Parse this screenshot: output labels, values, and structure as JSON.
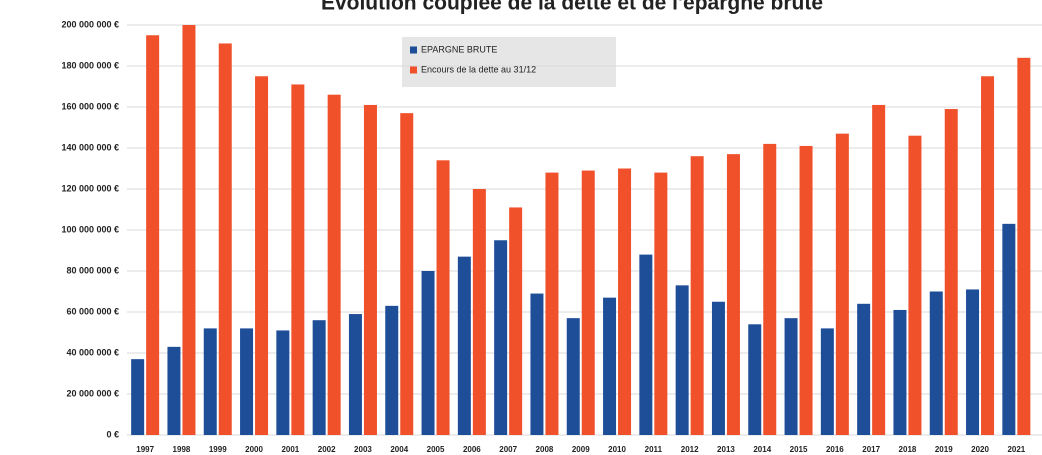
{
  "chart_data": {
    "type": "bar",
    "title": "Évolution couplée de la dette et de l'épargne brute",
    "categories": [
      "1997",
      "1998",
      "1999",
      "2000",
      "2001",
      "2002",
      "2003",
      "2004",
      "2005",
      "2006",
      "2007",
      "2008",
      "2009",
      "2010",
      "2011",
      "2012",
      "2013",
      "2014",
      "2015",
      "2016",
      "2017",
      "2018",
      "2019",
      "2020",
      "2021"
    ],
    "series": [
      {
        "name": "EPARGNE BRUTE",
        "color": "#1f4e99",
        "values": [
          37000000,
          43000000,
          52000000,
          52000000,
          51000000,
          56000000,
          59000000,
          63000000,
          80000000,
          87000000,
          95000000,
          69000000,
          57000000,
          67000000,
          88000000,
          73000000,
          65000000,
          54000000,
          57000000,
          52000000,
          64000000,
          61000000,
          70000000,
          71000000,
          103000000
        ]
      },
      {
        "name": "Encours de la dette au 31/12",
        "color": "#f0502a",
        "values": [
          195000000,
          200000000,
          191000000,
          175000000,
          171000000,
          166000000,
          161000000,
          157000000,
          134000000,
          120000000,
          111000000,
          128000000,
          129000000,
          130000000,
          128000000,
          136000000,
          137000000,
          142000000,
          141000000,
          147000000,
          161000000,
          146000000,
          159000000,
          175000000,
          184000000
        ]
      }
    ],
    "ylim": [
      0,
      200000000
    ],
    "yticks": [
      {
        "value": 0,
        "label": "0 €"
      },
      {
        "value": 20000000,
        "label": "20 000 000 €"
      },
      {
        "value": 40000000,
        "label": "40 000 000 €"
      },
      {
        "value": 60000000,
        "label": "60 000 000 €"
      },
      {
        "value": 80000000,
        "label": "80 000 000 €"
      },
      {
        "value": 100000000,
        "label": "100 000 000 €"
      },
      {
        "value": 120000000,
        "label": "120 000 000 €"
      },
      {
        "value": 140000000,
        "label": "140 000 000 €"
      },
      {
        "value": 160000000,
        "label": "160 000 000 €"
      },
      {
        "value": 180000000,
        "label": "180 000 000 €"
      },
      {
        "value": 200000000,
        "label": "200 000 000 €"
      }
    ],
    "grid": true,
    "legend": "top"
  }
}
